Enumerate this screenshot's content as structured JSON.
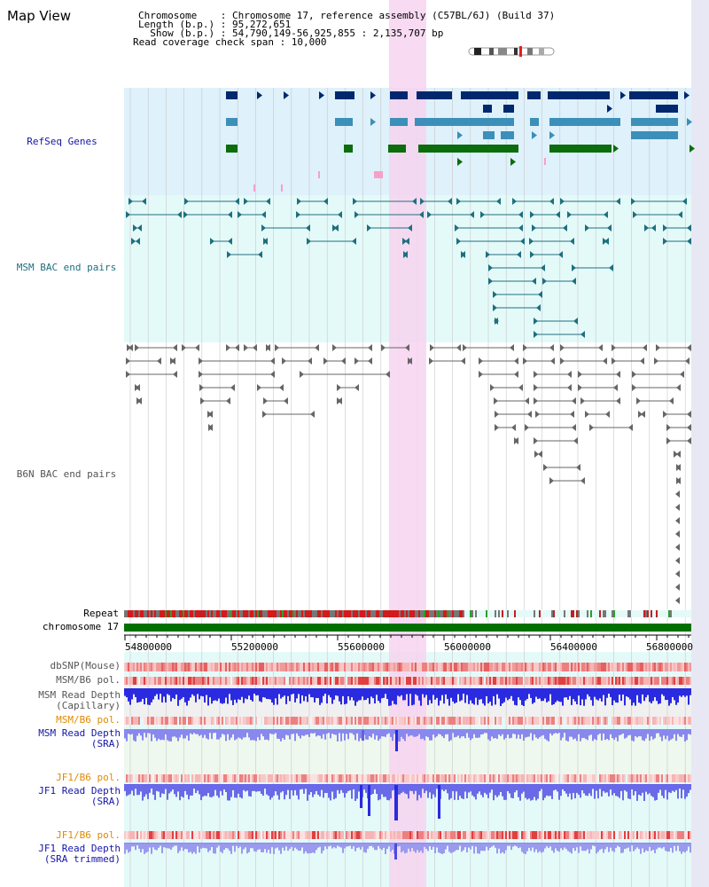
{
  "page": {
    "title": "Map View"
  },
  "info": {
    "line1": "Chromosome    : Chromosome 17, reference assembly (C57BL/6J) (Build 37)",
    "line2": "Length (b.p.) : 95,272,651",
    "line3": "  Show (b.p.) : 54,790,149-56,925,855 : 2,135,707 bp",
    "line4": "Read coverage check span : 10,000"
  },
  "tracks": {
    "refseq": "RefSeq Genes",
    "msm_bac": "MSM BAC end pairs",
    "b6n_bac": "B6N BAC end pairs",
    "repeat": "Repeat",
    "chromosome": "chromosome 17"
  },
  "axis": {
    "ticks": [
      "54800000",
      "55200000",
      "55600000",
      "56000000",
      "56400000",
      "56800000"
    ]
  },
  "lower_tracks": {
    "dbsnp": "dbSNP(Mouse)",
    "msm_pol1": "MSM/B6 pol.",
    "msm_cap": "MSM Read Depth\n(Capillary)",
    "msm_pol2": "MSM/B6 pol.",
    "msm_sra": "MSM Read Depth\n(SRA)",
    "jf1_pol1": "JF1/B6 pol.",
    "jf1_sra": "JF1 Read Depth\n(SRA)",
    "jf1_pol2": "JF1/B6 pol.",
    "jf1_trim": "JF1 Read Depth\n(SRA trimmed)"
  },
  "colors": {
    "refseq_bg": "#dff1fb",
    "msm_bg": "#e4faf9",
    "highlight": "#f7d3f0",
    "chromosome": "#007000",
    "gene_dark": "#00286f",
    "gene_mid": "#3c8fb8",
    "gene_green": "#0b6d0b",
    "depth_blue": "#2a2ae0",
    "depth_light": "#8888ee"
  }
}
